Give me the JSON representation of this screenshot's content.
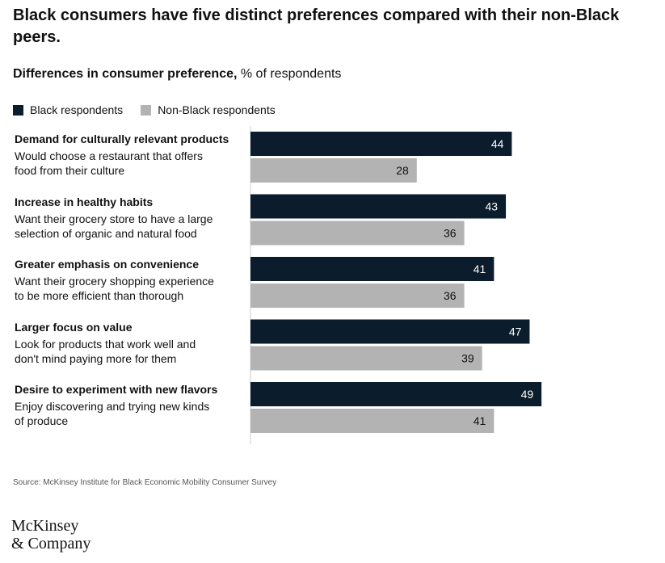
{
  "title": "Black consumers have five distinct preferences compared with their non-Black peers.",
  "subtitle": {
    "bold": "Differences in consumer preference,",
    "rest": " % of respondents"
  },
  "legend": [
    {
      "label": "Black respondents",
      "color": "#0b1c2c"
    },
    {
      "label": "Non-Black respondents",
      "color": "#b3b3b3"
    }
  ],
  "chart_data": {
    "type": "bar",
    "orientation": "horizontal",
    "unit": "% of respondents",
    "xlim": [
      0,
      100
    ],
    "categories": [
      {
        "heading": "Demand for culturally relevant products",
        "description": [
          "Would choose a restaurant that offers",
          "food from their culture"
        ]
      },
      {
        "heading": "Increase in healthy habits",
        "description": [
          "Want their grocery store to have a large",
          "selection of organic and natural food"
        ]
      },
      {
        "heading": "Greater emphasis on convenience",
        "description": [
          "Want their grocery shopping experience",
          "to be more efficient than thorough"
        ]
      },
      {
        "heading": "Larger focus on value",
        "description": [
          "Look for products that work well and",
          "don't mind paying more for them"
        ]
      },
      {
        "heading": "Desire to experiment with new flavors",
        "description": [
          "Enjoy discovering and trying new kinds",
          "of produce"
        ]
      }
    ],
    "series": [
      {
        "name": "Black respondents",
        "color": "#0b1c2c",
        "label_color": "#ffffff",
        "values": [
          44,
          43,
          41,
          47,
          49
        ]
      },
      {
        "name": "Non-Black respondents",
        "color": "#b3b3b3",
        "label_color": "#111111",
        "values": [
          28,
          36,
          36,
          39,
          41
        ]
      }
    ]
  },
  "source": "Source: McKinsey Institute for Black Economic Mobility Consumer Survey",
  "logo": {
    "line1": "McKinsey",
    "line2": "& Company"
  }
}
